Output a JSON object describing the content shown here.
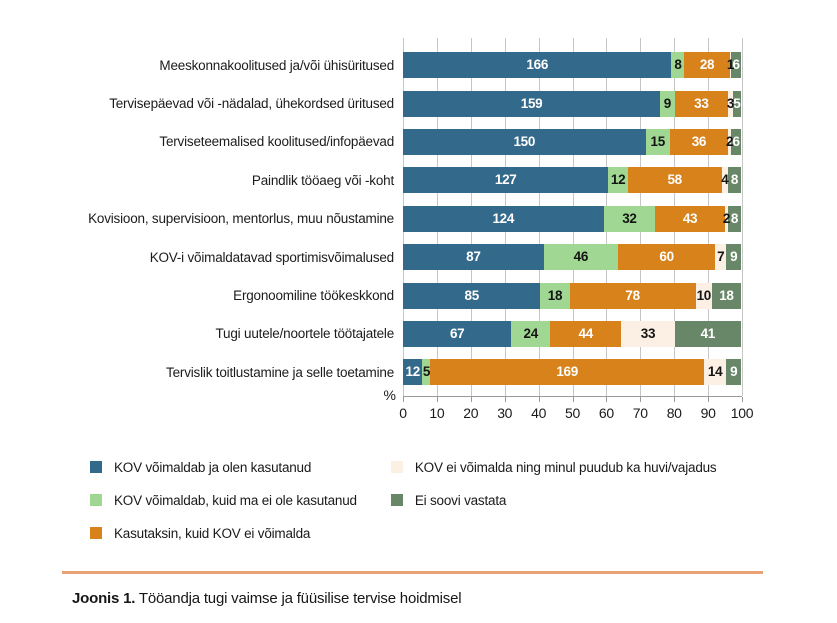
{
  "chart_data": {
    "type": "bar",
    "subtype": "horizontal-stacked-100pct",
    "title": "",
    "xlabel": "%",
    "xlim": [
      0,
      100
    ],
    "x_ticks": [
      0,
      10,
      20,
      30,
      40,
      50,
      60,
      70,
      80,
      90,
      100
    ],
    "grid": true,
    "row_total": 209,
    "categories": [
      "Meeskonnakoolitused ja/või ühisüritused",
      "Tervisepäevad või -nädalad, ühekordsed üritused",
      "Terviseteemalised koolitused/infopäevad",
      "Paindlik tööaeg või -koht",
      "Kovisioon, supervisioon, mentorlus, muu nõustamine",
      "KOV-i võimaldatavad sportimisvõimalused",
      "Ergonoomiline töökeskkond",
      "Tugi uutele/noortele töötajatele",
      "Tervislik toitlustamine ja selle toetamine"
    ],
    "series": [
      {
        "name": "KOV võimaldab ja olen kasutanud",
        "color": "#33698b",
        "text_color": "#ffffff",
        "values": [
          166,
          159,
          150,
          127,
          124,
          87,
          85,
          67,
          12
        ]
      },
      {
        "name": "KOV võimaldab, kuid ma ei ole kasutanud",
        "color": "#a0d792",
        "text_color": "#141414",
        "values": [
          8,
          9,
          15,
          12,
          32,
          46,
          18,
          24,
          5
        ]
      },
      {
        "name": "Kasutaksin, kuid KOV ei võimalda",
        "color": "#d8821c",
        "text_color": "#ffffff",
        "values": [
          28,
          33,
          36,
          58,
          43,
          60,
          78,
          44,
          169
        ]
      },
      {
        "name": "KOV ei võimalda ning minul puudub ka huvi/vajadus",
        "color": "#fcefe4",
        "text_color": "#141414",
        "values": [
          1,
          3,
          2,
          4,
          2,
          7,
          10,
          33,
          14
        ]
      },
      {
        "name": "Ei soovi vastata",
        "color": "#688769",
        "text_color": "#ffffff",
        "values": [
          6,
          5,
          6,
          8,
          8,
          9,
          18,
          41,
          9
        ]
      }
    ],
    "legend_position": "bottom",
    "legend_columns": [
      3,
      2
    ]
  },
  "colors": {
    "grid_line": "#c6c6c6",
    "axis_line": "#9b9b9b",
    "divider": "#e9a273",
    "background": "#ffffff"
  },
  "caption": {
    "prefix": "Joonis 1.",
    "text": " Tööandja tugi vaimse ja füüsilise tervise hoidmisel"
  }
}
